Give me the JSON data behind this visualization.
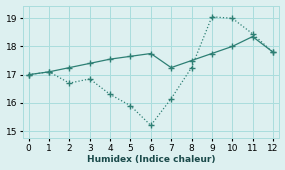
{
  "xlabel": "Humidex (Indice chaleur)",
  "x": [
    0,
    1,
    2,
    3,
    4,
    5,
    6,
    7,
    8,
    9,
    10,
    11,
    12
  ],
  "line1_y": [
    17.0,
    17.1,
    17.25,
    17.4,
    17.55,
    17.65,
    17.75,
    17.25,
    17.5,
    17.75,
    18.0,
    18.35,
    17.8
  ],
  "line2_y": [
    17.0,
    17.1,
    16.7,
    16.85,
    16.3,
    15.9,
    15.2,
    16.15,
    17.25,
    19.05,
    19.0,
    18.45,
    17.8
  ],
  "line_color": "#2d7f74",
  "bg_color": "#ddf0f0",
  "grid_color": "#aadddd",
  "xlim": [
    -0.3,
    12.3
  ],
  "ylim": [
    14.75,
    19.45
  ],
  "yticks": [
    15,
    16,
    17,
    18,
    19
  ],
  "xticks": [
    0,
    1,
    2,
    3,
    4,
    5,
    6,
    7,
    8,
    9,
    10,
    11,
    12
  ],
  "marker": "+"
}
